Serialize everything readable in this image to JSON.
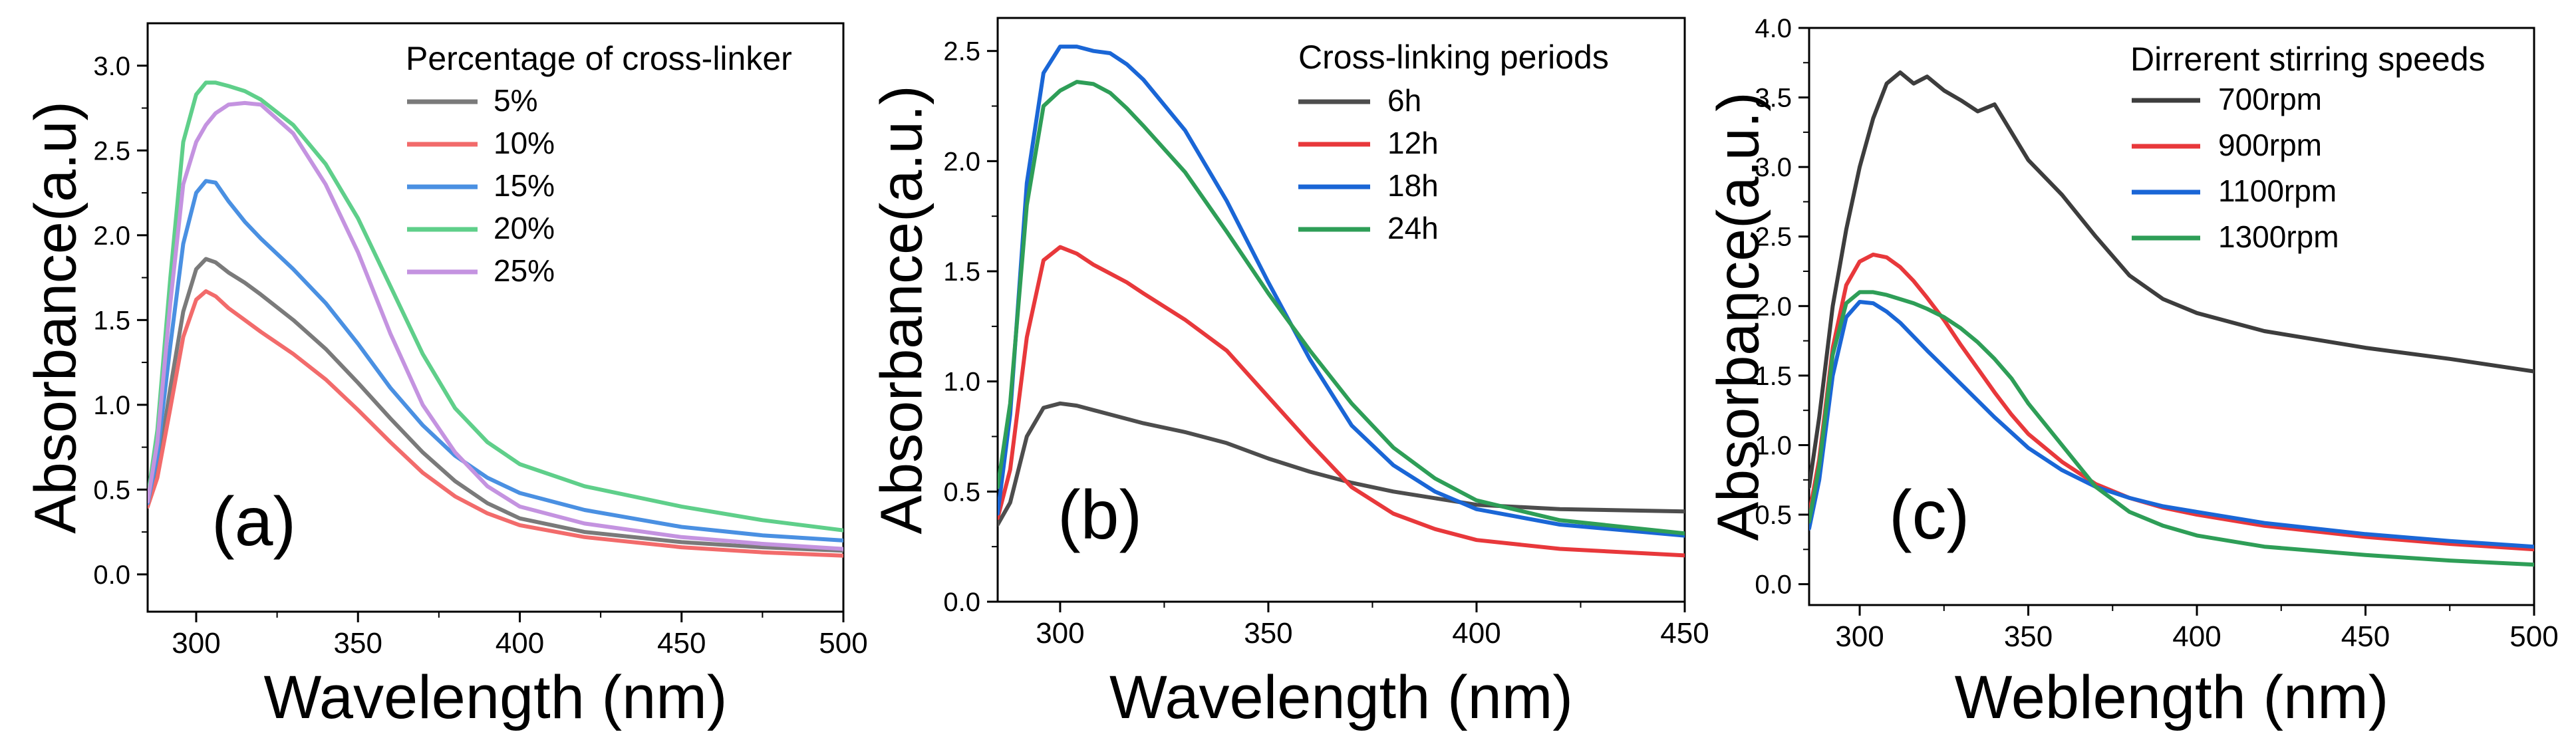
{
  "chart_data": [
    {
      "type": "line",
      "panel_label": "(a)",
      "title": "",
      "xlabel": "Wavelength (nm)",
      "ylabel": "Absorbance(a.u)",
      "xlim": [
        285,
        500
      ],
      "ylim": [
        -0.22,
        3.25
      ],
      "x_ticks": [
        300,
        350,
        400,
        450,
        500
      ],
      "y_ticks": [
        0.0,
        0.5,
        1.0,
        1.5,
        2.0,
        2.5,
        3.0
      ],
      "x_tick_labels": [
        "300",
        "350",
        "400",
        "450",
        "500"
      ],
      "y_tick_labels": [
        "0.0",
        "0.5",
        "1.0",
        "1.5",
        "2.0",
        "2.5",
        "3.0"
      ],
      "legend_title": "Percentage of cross-linker",
      "legend_position": "top-right",
      "x": [
        285,
        288,
        292,
        296,
        300,
        303,
        306,
        310,
        315,
        320,
        330,
        340,
        350,
        360,
        370,
        380,
        390,
        400,
        420,
        450,
        475,
        500
      ],
      "series": [
        {
          "name": "5%",
          "color": "#7a7a7a",
          "values": [
            0.4,
            0.6,
            1.1,
            1.55,
            1.8,
            1.86,
            1.84,
            1.78,
            1.72,
            1.65,
            1.5,
            1.33,
            1.13,
            0.92,
            0.72,
            0.55,
            0.42,
            0.33,
            0.25,
            0.19,
            0.16,
            0.14
          ]
        },
        {
          "name": "10%",
          "color": "#f26b6b",
          "values": [
            0.4,
            0.57,
            0.98,
            1.4,
            1.62,
            1.67,
            1.64,
            1.57,
            1.5,
            1.43,
            1.3,
            1.15,
            0.97,
            0.78,
            0.6,
            0.46,
            0.36,
            0.29,
            0.22,
            0.16,
            0.13,
            0.11
          ]
        },
        {
          "name": "15%",
          "color": "#4a90e2",
          "values": [
            0.42,
            0.7,
            1.35,
            1.95,
            2.25,
            2.32,
            2.31,
            2.2,
            2.08,
            1.98,
            1.8,
            1.6,
            1.36,
            1.1,
            0.88,
            0.7,
            0.57,
            0.48,
            0.38,
            0.28,
            0.23,
            0.2
          ]
        },
        {
          "name": "20%",
          "color": "#5fcf8a",
          "values": [
            0.45,
            0.85,
            1.75,
            2.55,
            2.83,
            2.9,
            2.9,
            2.88,
            2.85,
            2.8,
            2.65,
            2.42,
            2.1,
            1.7,
            1.3,
            0.98,
            0.78,
            0.65,
            0.52,
            0.4,
            0.32,
            0.26
          ]
        },
        {
          "name": "25%",
          "color": "#c493e0",
          "values": [
            0.43,
            0.78,
            1.6,
            2.3,
            2.55,
            2.65,
            2.72,
            2.77,
            2.78,
            2.77,
            2.6,
            2.3,
            1.9,
            1.42,
            1.0,
            0.72,
            0.52,
            0.4,
            0.3,
            0.22,
            0.18,
            0.15
          ]
        }
      ]
    },
    {
      "type": "line",
      "panel_label": "(b)",
      "title": "",
      "xlabel": "Wavelength (nm)",
      "ylabel": "Absorbance(a.u.)",
      "xlim": [
        285,
        450
      ],
      "ylim": [
        0.0,
        2.65
      ],
      "x_ticks": [
        300,
        350,
        400,
        450
      ],
      "y_ticks": [
        0.0,
        0.5,
        1.0,
        1.5,
        2.0,
        2.5
      ],
      "x_tick_labels": [
        "300",
        "350",
        "400",
        "450"
      ],
      "y_tick_labels": [
        "0.0",
        "0.5",
        "1.0",
        "1.5",
        "2.0",
        "2.5"
      ],
      "legend_title": "Cross-linking periods",
      "legend_position": "top-right",
      "x": [
        285,
        288,
        292,
        296,
        300,
        304,
        308,
        312,
        316,
        320,
        330,
        340,
        350,
        360,
        370,
        380,
        390,
        400,
        420,
        450
      ],
      "series": [
        {
          "name": "6h",
          "color": "#4d4d4d",
          "values": [
            0.35,
            0.45,
            0.75,
            0.88,
            0.9,
            0.89,
            0.87,
            0.85,
            0.83,
            0.81,
            0.77,
            0.72,
            0.65,
            0.59,
            0.54,
            0.5,
            0.47,
            0.44,
            0.42,
            0.41
          ]
        },
        {
          "name": "12h",
          "color": "#e8383b",
          "values": [
            0.38,
            0.6,
            1.2,
            1.55,
            1.61,
            1.58,
            1.53,
            1.49,
            1.45,
            1.4,
            1.28,
            1.14,
            0.93,
            0.72,
            0.52,
            0.4,
            0.33,
            0.28,
            0.24,
            0.21
          ]
        },
        {
          "name": "18h",
          "color": "#1a66d6",
          "values": [
            0.4,
            0.85,
            1.9,
            2.4,
            2.52,
            2.52,
            2.5,
            2.49,
            2.44,
            2.37,
            2.14,
            1.82,
            1.45,
            1.1,
            0.8,
            0.62,
            0.5,
            0.42,
            0.35,
            0.3
          ]
        },
        {
          "name": "24h",
          "color": "#2e9e57",
          "values": [
            0.52,
            0.9,
            1.8,
            2.25,
            2.32,
            2.36,
            2.35,
            2.31,
            2.24,
            2.16,
            1.95,
            1.68,
            1.4,
            1.14,
            0.9,
            0.7,
            0.56,
            0.46,
            0.37,
            0.31
          ]
        }
      ]
    },
    {
      "type": "line",
      "panel_label": "(c)",
      "title": "",
      "xlabel": "Weblength (nm)",
      "ylabel": "Absorbance(a.u.)",
      "xlim": [
        285,
        500
      ],
      "ylim": [
        -0.15,
        4.0
      ],
      "x_ticks": [
        300,
        350,
        400,
        450,
        500
      ],
      "y_ticks": [
        0.0,
        0.5,
        1.0,
        1.5,
        2.0,
        2.5,
        3.0,
        3.5,
        4.0
      ],
      "x_tick_labels": [
        "300",
        "350",
        "400",
        "450",
        "500"
      ],
      "y_tick_labels": [
        "0.0",
        "0.5",
        "1.0",
        "1.5",
        "2.0",
        "2.5",
        "3.0",
        "3.5",
        "4.0"
      ],
      "legend_title": "Dirrerent stirring speeds",
      "legend_position": "top-right",
      "x": [
        285,
        288,
        292,
        296,
        300,
        304,
        308,
        312,
        316,
        320,
        325,
        330,
        335,
        340,
        345,
        350,
        360,
        370,
        380,
        390,
        400,
        420,
        450,
        475,
        500
      ],
      "series": [
        {
          "name": "700rpm",
          "color": "#3d3d3d",
          "values": [
            0.7,
            1.2,
            2.0,
            2.55,
            3.0,
            3.35,
            3.6,
            3.68,
            3.6,
            3.65,
            3.55,
            3.48,
            3.4,
            3.45,
            3.25,
            3.05,
            2.8,
            2.5,
            2.22,
            2.05,
            1.95,
            1.82,
            1.7,
            1.62,
            1.53
          ]
        },
        {
          "name": "900rpm",
          "color": "#e8383b",
          "values": [
            0.5,
            0.9,
            1.7,
            2.15,
            2.32,
            2.37,
            2.35,
            2.28,
            2.18,
            2.06,
            1.9,
            1.72,
            1.55,
            1.38,
            1.22,
            1.08,
            0.88,
            0.72,
            0.62,
            0.55,
            0.5,
            0.42,
            0.34,
            0.29,
            0.25
          ]
        },
        {
          "name": "1100rpm",
          "color": "#1a66d6",
          "values": [
            0.4,
            0.75,
            1.5,
            1.92,
            2.03,
            2.02,
            1.96,
            1.88,
            1.78,
            1.68,
            1.56,
            1.44,
            1.32,
            1.2,
            1.09,
            0.98,
            0.82,
            0.7,
            0.62,
            0.56,
            0.52,
            0.44,
            0.36,
            0.31,
            0.27
          ]
        },
        {
          "name": "1300rpm",
          "color": "#2e9e57",
          "values": [
            0.45,
            0.85,
            1.65,
            2.02,
            2.1,
            2.1,
            2.08,
            2.05,
            2.02,
            1.98,
            1.92,
            1.84,
            1.74,
            1.62,
            1.48,
            1.3,
            1.0,
            0.7,
            0.52,
            0.42,
            0.35,
            0.27,
            0.21,
            0.17,
            0.14
          ]
        }
      ]
    }
  ]
}
